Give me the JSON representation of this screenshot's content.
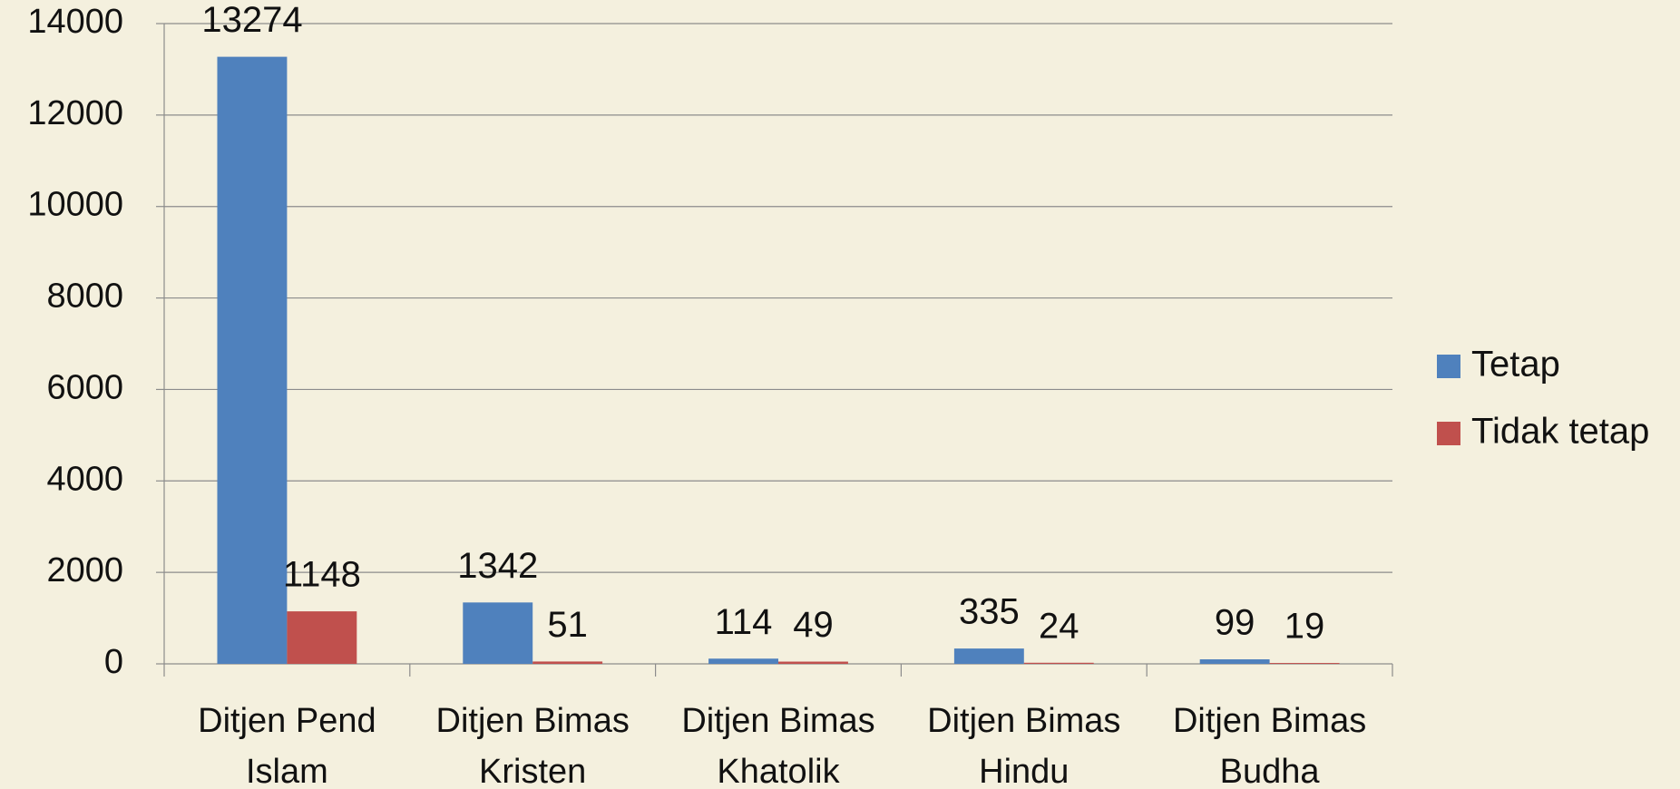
{
  "chart_data": {
    "type": "bar",
    "categories": [
      "Ditjen Pend Islam",
      "Ditjen Bimas Kristen",
      "Ditjen Bimas Khatolik",
      "Ditjen Bimas Hindu",
      "Ditjen Bimas Budha"
    ],
    "series": [
      {
        "name": "Tetap",
        "color": "#4f81bd",
        "values": [
          13274,
          1342,
          114,
          335,
          99
        ]
      },
      {
        "name": "Tidak tetap",
        "color": "#c0504d",
        "values": [
          1148,
          51,
          49,
          24,
          19
        ]
      }
    ],
    "ylim": [
      0,
      14000
    ],
    "yticks": [
      0,
      2000,
      4000,
      6000,
      8000,
      10000,
      12000,
      14000
    ],
    "grid": true,
    "legend": "right"
  }
}
